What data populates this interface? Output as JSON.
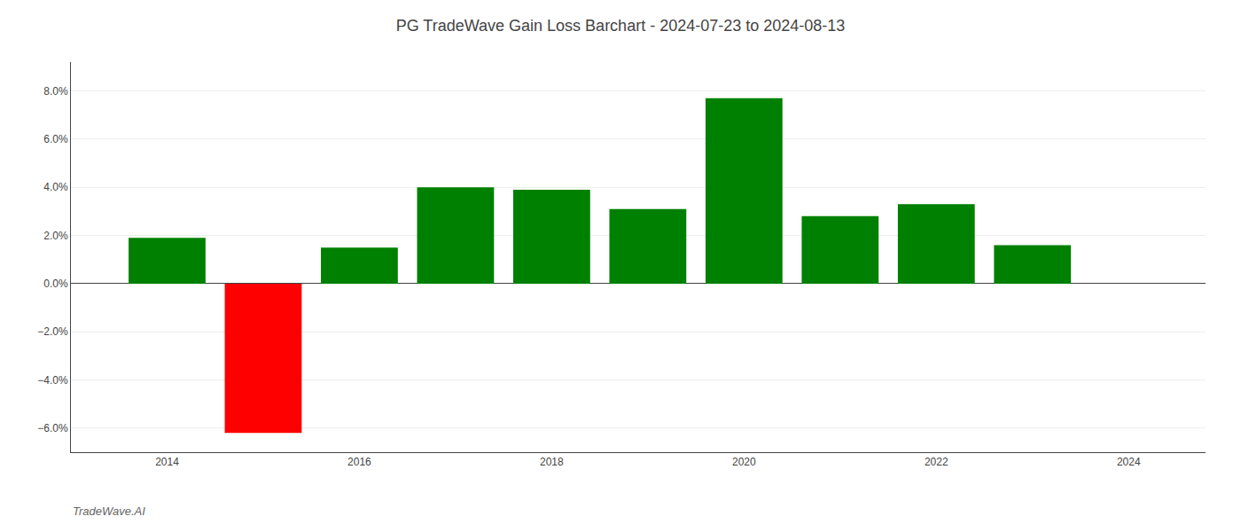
{
  "chart_data": {
    "type": "bar",
    "title": "PG TradeWave Gain Loss Barchart - 2024-07-23 to 2024-08-13",
    "annotations": [
      "TradeWave.AI"
    ],
    "x": [
      2014,
      2015,
      2016,
      2017,
      2018,
      2019,
      2020,
      2021,
      2022,
      2023
    ],
    "values": [
      0.019,
      -0.062,
      0.015,
      0.04,
      0.039,
      0.031,
      0.077,
      0.028,
      0.033,
      0.016
    ],
    "colors": [
      "#008000",
      "#ff0000",
      "#008000",
      "#008000",
      "#008000",
      "#008000",
      "#008000",
      "#008000",
      "#008000",
      "#008000"
    ],
    "xlim": [
      2013.0,
      2024.8
    ],
    "xticks": [
      2014,
      2016,
      2018,
      2020,
      2022,
      2024
    ],
    "ylim": [
      -0.07,
      0.092
    ],
    "yticks": [
      {
        "value": -0.06,
        "label": "−6.0%"
      },
      {
        "value": -0.04,
        "label": "−4.0%"
      },
      {
        "value": -0.02,
        "label": "−2.0%"
      },
      {
        "value": 0.0,
        "label": "0.0%"
      },
      {
        "value": 0.02,
        "label": "2.0%"
      },
      {
        "value": 0.04,
        "label": "4.0%"
      },
      {
        "value": 0.06,
        "label": "6.0%"
      },
      {
        "value": 0.08,
        "label": "8.0%"
      }
    ],
    "grid": true
  }
}
